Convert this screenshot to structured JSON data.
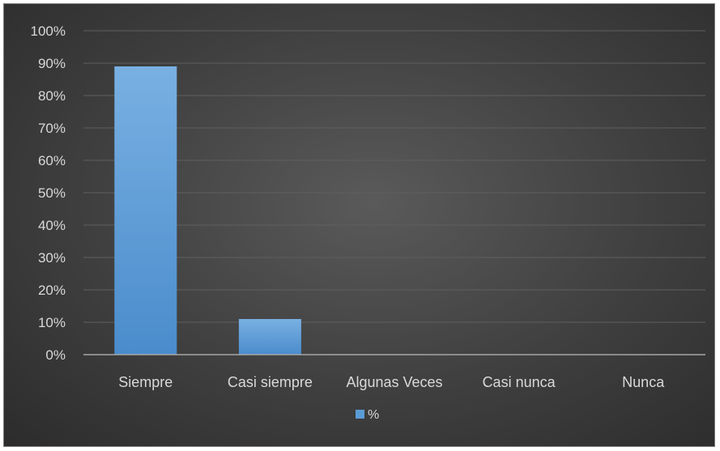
{
  "chart_data": {
    "type": "bar",
    "categories": [
      "Siempre",
      "Casi siempre",
      "Algunas Veces",
      "Casi nunca",
      "Nunca"
    ],
    "series": [
      {
        "name": "%",
        "values": [
          0.89,
          0.11,
          0,
          0,
          0
        ]
      }
    ],
    "ylim": [
      0,
      1
    ],
    "y_ticks": [
      0,
      0.1,
      0.2,
      0.3,
      0.4,
      0.5,
      0.6,
      0.7,
      0.8,
      0.9,
      1.0
    ],
    "y_tick_labels": [
      "0%",
      "10%",
      "20%",
      "30%",
      "40%",
      "50%",
      "60%",
      "70%",
      "80%",
      "90%",
      "100%"
    ],
    "grid": true,
    "legend_position": "bottom",
    "colors": {
      "bar": "#5b9bd5",
      "grid": "#5f5f5f",
      "axis": "#a6a6a6",
      "text": "#d9d9d9"
    }
  }
}
